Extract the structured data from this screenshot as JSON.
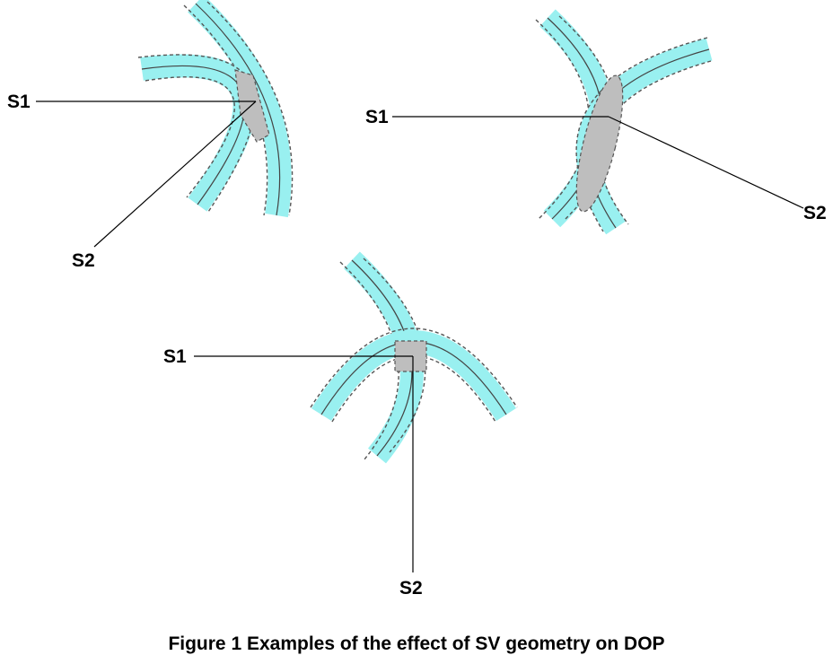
{
  "caption": "Figure 1 Examples of the effect of SV geometry on DOP",
  "colors": {
    "band": "#99F0F0",
    "overlap": "#BEBEBE",
    "line": "#000000",
    "dash": "#555555",
    "background": "#FFFFFF"
  },
  "panels": [
    {
      "id": "top-left",
      "s1_label": "S1",
      "s2_label": "S2"
    },
    {
      "id": "top-right",
      "s1_label": "S1",
      "s2_label": "S2"
    },
    {
      "id": "bottom",
      "s1_label": "S1",
      "s2_label": "S2"
    }
  ]
}
